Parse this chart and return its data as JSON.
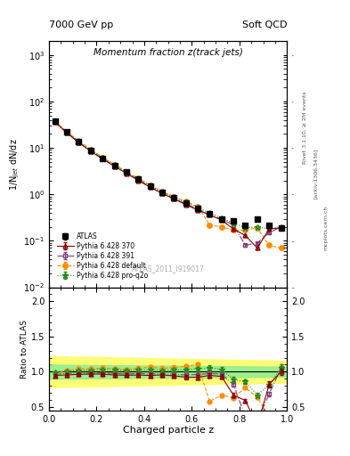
{
  "title_top": "7000 GeV pp",
  "title_right": "Soft QCD",
  "plot_title": "Momentum fraction z(track jets)",
  "xlabel": "Charged particle z",
  "ylabel_main": "1/N$_{jet}$ dN/dz",
  "ylabel_ratio": "Ratio to ATLAS",
  "watermark": "ATLAS_2011_I919017",
  "rivet_text": "Rivet 3.1.10, ≥ 2M events",
  "arxiv_text": "[arXiv:1306.3436]",
  "mcplots_text": "mcplots.cern.ch",
  "xlim": [
    0,
    1.0
  ],
  "ylim_main": [
    0.01,
    2000
  ],
  "ylim_ratio": [
    0.45,
    2.2
  ],
  "z_values": [
    0.025,
    0.075,
    0.125,
    0.175,
    0.225,
    0.275,
    0.325,
    0.375,
    0.425,
    0.475,
    0.525,
    0.575,
    0.625,
    0.675,
    0.725,
    0.775,
    0.825,
    0.875,
    0.925,
    0.975
  ],
  "atlas_y": [
    38.0,
    22.0,
    13.5,
    8.8,
    6.0,
    4.2,
    3.0,
    2.1,
    1.5,
    1.1,
    0.85,
    0.65,
    0.5,
    0.38,
    0.3,
    0.27,
    0.22,
    0.3,
    0.22,
    0.19
  ],
  "atlas_yerr": [
    1.5,
    0.8,
    0.5,
    0.35,
    0.25,
    0.18,
    0.12,
    0.09,
    0.07,
    0.05,
    0.04,
    0.03,
    0.025,
    0.02,
    0.015,
    0.014,
    0.012,
    0.02,
    0.015,
    0.013
  ],
  "py370_y": [
    36.0,
    21.0,
    13.0,
    8.5,
    5.8,
    4.0,
    2.85,
    2.0,
    1.42,
    1.05,
    0.8,
    0.6,
    0.46,
    0.36,
    0.28,
    0.18,
    0.13,
    0.07,
    0.18,
    0.19
  ],
  "py370_yerr": [
    0.8,
    0.5,
    0.3,
    0.2,
    0.15,
    0.1,
    0.07,
    0.05,
    0.04,
    0.03,
    0.025,
    0.02,
    0.015,
    0.012,
    0.01,
    0.008,
    0.006,
    0.005,
    0.01,
    0.008
  ],
  "py391_y": [
    36.5,
    21.5,
    13.2,
    8.6,
    5.9,
    4.1,
    2.9,
    2.05,
    1.45,
    1.07,
    0.82,
    0.62,
    0.48,
    0.37,
    0.29,
    0.22,
    0.08,
    0.09,
    0.15,
    0.2
  ],
  "py391_yerr": [
    0.8,
    0.5,
    0.3,
    0.2,
    0.15,
    0.1,
    0.07,
    0.05,
    0.04,
    0.03,
    0.025,
    0.02,
    0.015,
    0.012,
    0.01,
    0.008,
    0.004,
    0.005,
    0.008,
    0.01
  ],
  "pydef_y": [
    37.0,
    22.5,
    14.0,
    9.2,
    6.3,
    4.4,
    3.1,
    2.2,
    1.6,
    1.15,
    0.9,
    0.7,
    0.55,
    0.22,
    0.2,
    0.17,
    0.17,
    0.19,
    0.08,
    0.07
  ],
  "pydef_yerr": [
    0.9,
    0.55,
    0.35,
    0.22,
    0.16,
    0.11,
    0.08,
    0.06,
    0.045,
    0.033,
    0.026,
    0.02,
    0.018,
    0.008,
    0.007,
    0.006,
    0.006,
    0.008,
    0.004,
    0.003
  ],
  "pyproq2o_y": [
    37.5,
    22.0,
    13.8,
    9.0,
    6.2,
    4.3,
    3.05,
    2.15,
    1.55,
    1.12,
    0.87,
    0.67,
    0.52,
    0.4,
    0.31,
    0.24,
    0.19,
    0.2,
    0.18,
    0.2
  ],
  "pyproq2o_yerr": [
    0.9,
    0.55,
    0.35,
    0.22,
    0.16,
    0.11,
    0.08,
    0.06,
    0.045,
    0.033,
    0.026,
    0.018,
    0.016,
    0.013,
    0.011,
    0.009,
    0.007,
    0.009,
    0.008,
    0.01
  ],
  "color_atlas": "#000000",
  "color_py370": "#8B0000",
  "color_py391": "#7B3F7B",
  "color_pydef": "#FF8C00",
  "color_pyproq2o": "#228B22",
  "band_yellow": "#FFFF66",
  "band_green": "#90EE90",
  "legend_labels": [
    "ATLAS",
    "Pythia 6.428 370",
    "Pythia 6.428 391",
    "Pythia 6.428 default",
    "Pythia 6.428 pro-q2o"
  ]
}
